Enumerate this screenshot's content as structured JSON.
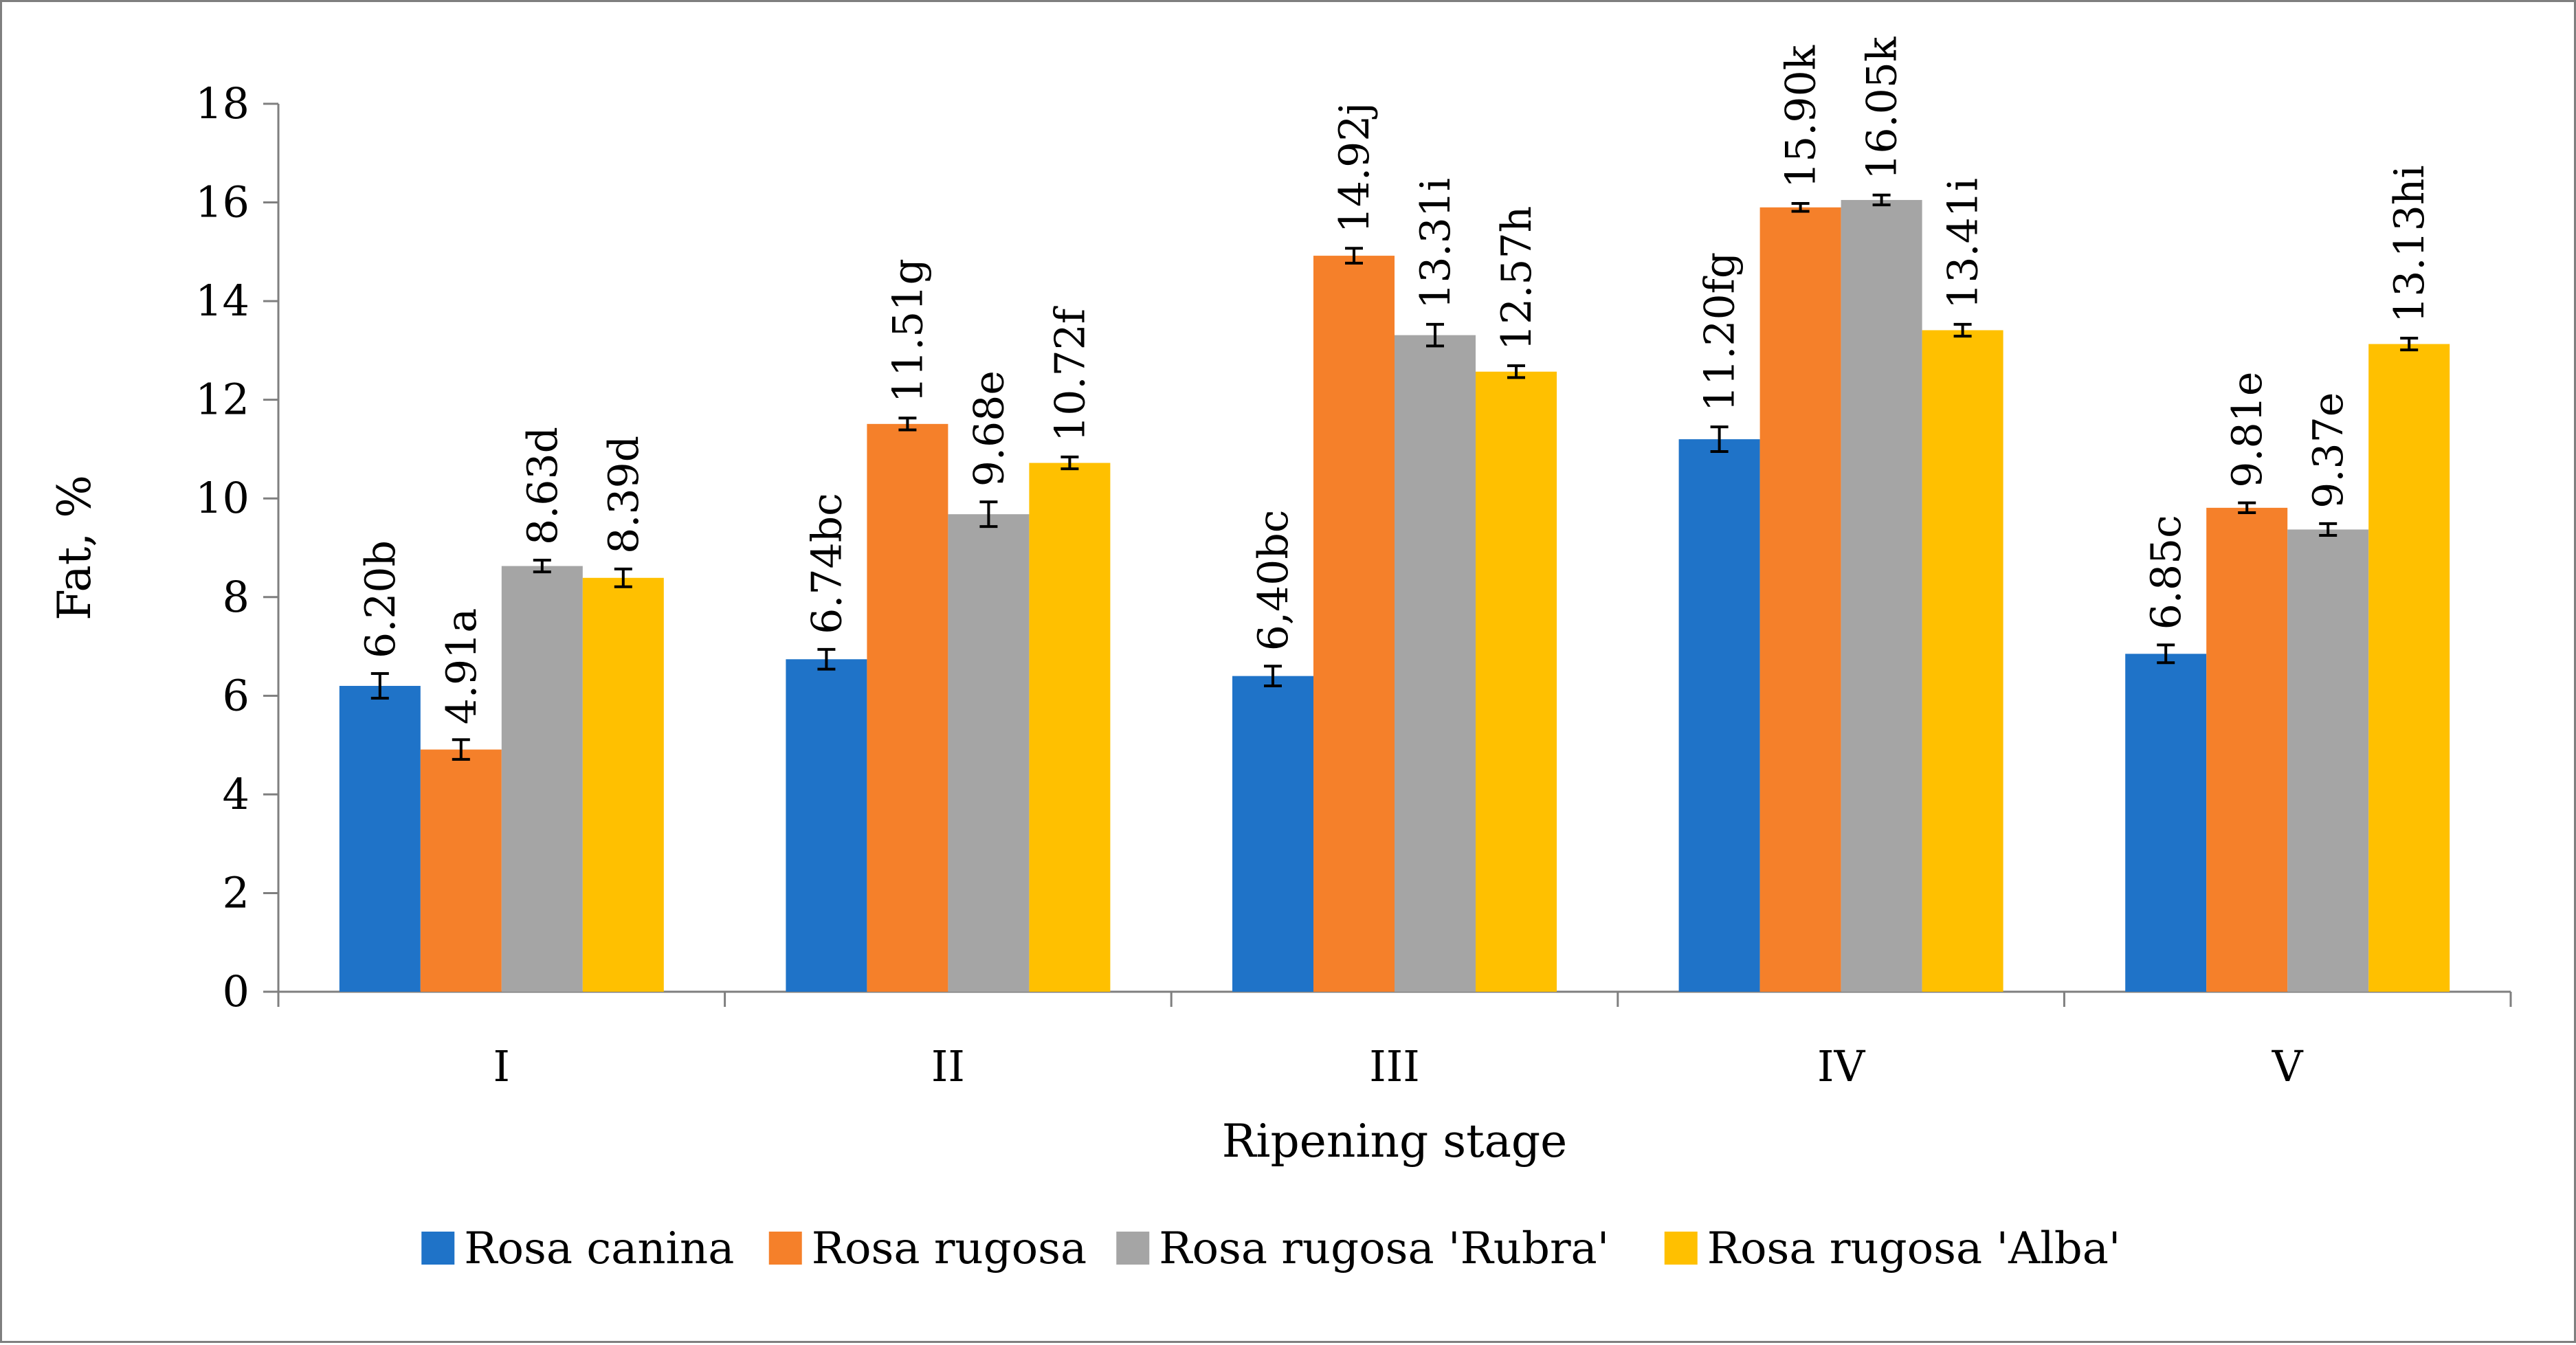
{
  "chart_data": {
    "type": "bar",
    "title": "",
    "xlabel": "Ripening stage",
    "ylabel": "Fat, %",
    "ylim": [
      0,
      18
    ],
    "yticks": [
      0,
      2,
      4,
      6,
      8,
      10,
      12,
      14,
      16,
      18
    ],
    "grid": false,
    "legend_position": "bottom",
    "categories": [
      "I",
      "II",
      "III",
      "IV",
      "V"
    ],
    "series": [
      {
        "name": "Rosa canina",
        "color": "#1f73c8",
        "values": [
          6.2,
          6.74,
          6.4,
          11.2,
          6.85
        ],
        "errors": [
          0.25,
          0.2,
          0.2,
          0.25,
          0.18
        ],
        "labels": [
          "6.20b",
          "6.74bc",
          "6,40bc",
          "11.20fg",
          "6.85c"
        ]
      },
      {
        "name": "Rosa rugosa",
        "color": "#f5802a",
        "values": [
          4.91,
          11.51,
          14.92,
          15.9,
          9.81
        ],
        "errors": [
          0.2,
          0.12,
          0.15,
          0.08,
          0.1
        ],
        "labels": [
          "4.91a",
          "11.51g",
          "14.92j",
          "15.90k",
          "9.81e"
        ]
      },
      {
        "name": "Rosa rugosa 'Rubra'",
        "color": "#a5a5a5",
        "values": [
          8.63,
          9.68,
          13.31,
          16.05,
          9.37
        ],
        "errors": [
          0.12,
          0.25,
          0.22,
          0.1,
          0.12
        ],
        "labels": [
          "8.63d",
          "9.68e",
          "13.31i",
          "16.05k",
          "9.37e"
        ]
      },
      {
        "name": "Rosa rugosa 'Alba'",
        "color": "#ffc000",
        "values": [
          8.39,
          10.72,
          12.57,
          13.41,
          13.13
        ],
        "errors": [
          0.18,
          0.12,
          0.12,
          0.12,
          0.12
        ],
        "labels": [
          "8.39d",
          "10.72f",
          "12.57h",
          "13.41i",
          "13.13hi"
        ]
      }
    ]
  }
}
